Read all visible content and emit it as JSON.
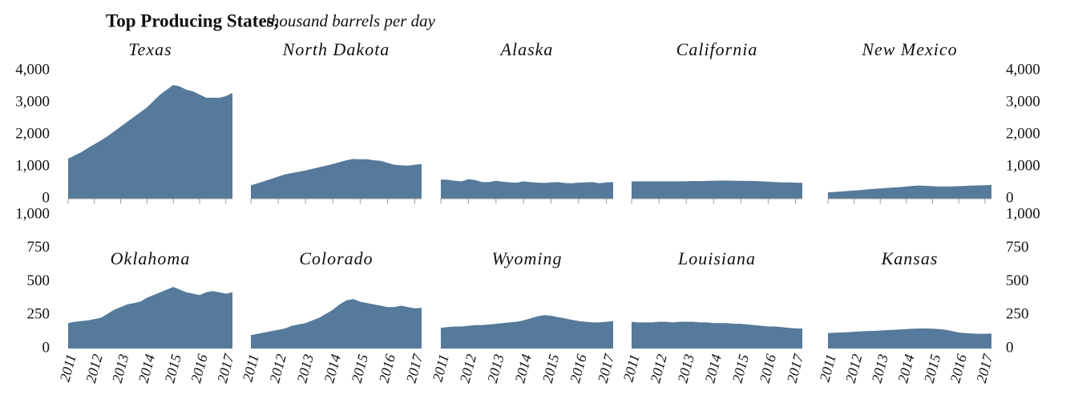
{
  "title": "Top Producing States,",
  "subtitle": "thousand barrels per day",
  "chart_data": [
    {
      "type": "area",
      "title": "Texas",
      "color": "#557a9b",
      "xlim": [
        2011,
        2017.25
      ],
      "ylim": [
        0,
        4000
      ],
      "yticks": [
        0,
        {
          "value": 1000,
          "label": "1,000"
        },
        {
          "value": 2000,
          "label": "2,000"
        },
        {
          "value": 3000,
          "label": "3,000"
        },
        {
          "value": 4000,
          "label": "4,000"
        }
      ],
      "xticks": [
        2011,
        2012,
        2013,
        2014,
        2015,
        2016,
        2017
      ],
      "x": [
        2011,
        2011.25,
        2011.5,
        2011.75,
        2012,
        2012.25,
        2012.5,
        2012.75,
        2013,
        2013.25,
        2013.5,
        2013.75,
        2014,
        2014.25,
        2014.5,
        2014.75,
        2015,
        2015.25,
        2015.5,
        2015.75,
        2016,
        2016.25,
        2016.5,
        2016.75,
        2017,
        2017.25
      ],
      "values": [
        1250,
        1350,
        1450,
        1580,
        1700,
        1820,
        1950,
        2100,
        2250,
        2400,
        2550,
        2700,
        2850,
        3050,
        3250,
        3400,
        3550,
        3500,
        3400,
        3350,
        3250,
        3150,
        3150,
        3150,
        3200,
        3300
      ]
    },
    {
      "type": "area",
      "title": "North Dakota",
      "color": "#557a9b",
      "xlim": [
        2011,
        2017.25
      ],
      "ylim": [
        0,
        4000
      ],
      "xticks": [
        2011,
        2012,
        2013,
        2014,
        2015,
        2016,
        2017
      ],
      "x": [
        2011,
        2011.25,
        2011.5,
        2011.75,
        2012,
        2012.25,
        2012.5,
        2012.75,
        2013,
        2013.25,
        2013.5,
        2013.75,
        2014,
        2014.25,
        2014.5,
        2014.75,
        2015,
        2015.25,
        2015.5,
        2015.75,
        2016,
        2016.25,
        2016.5,
        2016.75,
        2017,
        2017.25
      ],
      "values": [
        420,
        480,
        550,
        620,
        690,
        760,
        800,
        840,
        880,
        930,
        980,
        1030,
        1080,
        1140,
        1200,
        1240,
        1230,
        1230,
        1200,
        1180,
        1120,
        1060,
        1040,
        1030,
        1060,
        1080
      ]
    },
    {
      "type": "area",
      "title": "Alaska",
      "color": "#557a9b",
      "xlim": [
        2011,
        2017.25
      ],
      "ylim": [
        0,
        4000
      ],
      "xticks": [
        2011,
        2012,
        2013,
        2014,
        2015,
        2016,
        2017
      ],
      "x": [
        2011,
        2011.25,
        2011.5,
        2011.75,
        2012,
        2012.25,
        2012.5,
        2012.75,
        2013,
        2013.25,
        2013.5,
        2013.75,
        2014,
        2014.25,
        2014.5,
        2014.75,
        2015,
        2015.25,
        2015.5,
        2015.75,
        2016,
        2016.25,
        2016.5,
        2016.75,
        2017,
        2017.25
      ],
      "values": [
        600,
        590,
        560,
        540,
        610,
        580,
        520,
        520,
        560,
        530,
        510,
        500,
        540,
        520,
        500,
        490,
        510,
        520,
        490,
        480,
        500,
        510,
        520,
        480,
        510,
        520
      ]
    },
    {
      "type": "area",
      "title": "California",
      "color": "#557a9b",
      "xlim": [
        2011,
        2017.25
      ],
      "ylim": [
        0,
        4000
      ],
      "xticks": [
        2011,
        2012,
        2013,
        2014,
        2015,
        2016,
        2017
      ],
      "x": [
        2011,
        2011.25,
        2011.5,
        2011.75,
        2012,
        2012.25,
        2012.5,
        2012.75,
        2013,
        2013.25,
        2013.5,
        2013.75,
        2014,
        2014.25,
        2014.5,
        2014.75,
        2015,
        2015.25,
        2015.5,
        2015.75,
        2016,
        2016.25,
        2016.5,
        2016.75,
        2017,
        2017.25
      ],
      "values": [
        540,
        540,
        540,
        540,
        540,
        540,
        540,
        540,
        545,
        550,
        550,
        555,
        560,
        565,
        565,
        560,
        555,
        555,
        550,
        540,
        530,
        520,
        510,
        510,
        500,
        495
      ]
    },
    {
      "type": "area",
      "title": "New Mexico",
      "color": "#557a9b",
      "xlim": [
        2011,
        2017.25
      ],
      "ylim": [
        0,
        4000
      ],
      "yticks": [
        0,
        {
          "value": 1000,
          "label": "1,000"
        },
        {
          "value": 2000,
          "label": "2,000"
        },
        {
          "value": 3000,
          "label": "3,000"
        },
        {
          "value": 4000,
          "label": "4,000"
        }
      ],
      "xticks": [
        2011,
        2012,
        2013,
        2014,
        2015,
        2016,
        2017
      ],
      "x": [
        2011,
        2011.25,
        2011.5,
        2011.75,
        2012,
        2012.25,
        2012.5,
        2012.75,
        2013,
        2013.25,
        2013.5,
        2013.75,
        2014,
        2014.25,
        2014.5,
        2014.75,
        2015,
        2015.25,
        2015.5,
        2015.75,
        2016,
        2016.25,
        2016.5,
        2016.75,
        2017,
        2017.25
      ],
      "values": [
        200,
        210,
        225,
        240,
        255,
        270,
        290,
        305,
        320,
        335,
        350,
        360,
        380,
        400,
        410,
        400,
        390,
        380,
        380,
        385,
        390,
        400,
        410,
        415,
        420,
        430
      ]
    },
    {
      "type": "area",
      "title": "Oklahoma",
      "color": "#557a9b",
      "xlim": [
        2011,
        2017.25
      ],
      "ylim": [
        0,
        1000
      ],
      "yticks": [
        0,
        250,
        500,
        750,
        {
          "value": 1000,
          "label": "1,000"
        }
      ],
      "xticks": [
        2011,
        2012,
        2013,
        2014,
        2015,
        2016,
        2017
      ],
      "x": [
        2011,
        2011.25,
        2011.5,
        2011.75,
        2012,
        2012.25,
        2012.5,
        2012.75,
        2013,
        2013.25,
        2013.5,
        2013.75,
        2014,
        2014.25,
        2014.5,
        2014.75,
        2015,
        2015.25,
        2015.5,
        2015.75,
        2016,
        2016.25,
        2016.5,
        2016.75,
        2017,
        2017.25
      ],
      "values": [
        190,
        200,
        205,
        210,
        220,
        230,
        260,
        290,
        310,
        330,
        340,
        350,
        380,
        400,
        420,
        440,
        460,
        440,
        420,
        410,
        400,
        420,
        430,
        420,
        410,
        420
      ]
    },
    {
      "type": "area",
      "title": "Colorado",
      "color": "#557a9b",
      "xlim": [
        2011,
        2017.25
      ],
      "ylim": [
        0,
        1000
      ],
      "xticks": [
        2011,
        2012,
        2013,
        2014,
        2015,
        2016,
        2017
      ],
      "x": [
        2011,
        2011.25,
        2011.5,
        2011.75,
        2012,
        2012.25,
        2012.5,
        2012.75,
        2013,
        2013.25,
        2013.5,
        2013.75,
        2014,
        2014.25,
        2014.5,
        2014.75,
        2015,
        2015.25,
        2015.5,
        2015.75,
        2016,
        2016.25,
        2016.5,
        2016.75,
        2017,
        2017.25
      ],
      "values": [
        100,
        110,
        120,
        130,
        140,
        150,
        170,
        180,
        190,
        210,
        230,
        260,
        290,
        330,
        360,
        370,
        350,
        340,
        330,
        320,
        310,
        310,
        320,
        310,
        300,
        305
      ]
    },
    {
      "type": "area",
      "title": "Wyoming",
      "color": "#557a9b",
      "xlim": [
        2011,
        2017.25
      ],
      "ylim": [
        0,
        1000
      ],
      "xticks": [
        2011,
        2012,
        2013,
        2014,
        2015,
        2016,
        2017
      ],
      "x": [
        2011,
        2011.25,
        2011.5,
        2011.75,
        2012,
        2012.25,
        2012.5,
        2012.75,
        2013,
        2013.25,
        2013.5,
        2013.75,
        2014,
        2014.25,
        2014.5,
        2014.75,
        2015,
        2015.25,
        2015.5,
        2015.75,
        2016,
        2016.25,
        2016.5,
        2016.75,
        2017,
        2017.25
      ],
      "values": [
        155,
        160,
        165,
        165,
        170,
        175,
        175,
        180,
        185,
        190,
        195,
        200,
        210,
        225,
        240,
        250,
        245,
        235,
        225,
        215,
        205,
        200,
        195,
        195,
        200,
        205
      ]
    },
    {
      "type": "area",
      "title": "Louisiana",
      "color": "#557a9b",
      "xlim": [
        2011,
        2017.25
      ],
      "ylim": [
        0,
        1000
      ],
      "xticks": [
        2011,
        2012,
        2013,
        2014,
        2015,
        2016,
        2017
      ],
      "x": [
        2011,
        2011.25,
        2011.5,
        2011.75,
        2012,
        2012.25,
        2012.5,
        2012.75,
        2013,
        2013.25,
        2013.5,
        2013.75,
        2014,
        2014.25,
        2014.5,
        2014.75,
        2015,
        2015.25,
        2015.5,
        2015.75,
        2016,
        2016.25,
        2016.5,
        2016.75,
        2017,
        2017.25
      ],
      "values": [
        200,
        195,
        195,
        195,
        200,
        200,
        195,
        200,
        200,
        200,
        195,
        195,
        190,
        190,
        190,
        185,
        185,
        180,
        175,
        170,
        165,
        165,
        160,
        155,
        150,
        150
      ]
    },
    {
      "type": "area",
      "title": "Kansas",
      "color": "#557a9b",
      "xlim": [
        2011,
        2017.25
      ],
      "ylim": [
        0,
        1000
      ],
      "yticks": [
        0,
        250,
        500,
        750,
        {
          "value": 1000,
          "label": "1,000"
        }
      ],
      "xticks": [
        2011,
        2012,
        2013,
        2014,
        2015,
        2016,
        2017
      ],
      "x": [
        2011,
        2011.25,
        2011.5,
        2011.75,
        2012,
        2012.25,
        2012.5,
        2012.75,
        2013,
        2013.25,
        2013.5,
        2013.75,
        2014,
        2014.25,
        2014.5,
        2014.75,
        2015,
        2015.25,
        2015.5,
        2015.75,
        2016,
        2016.25,
        2016.5,
        2016.75,
        2017,
        2017.25
      ],
      "values": [
        115,
        118,
        120,
        122,
        125,
        128,
        130,
        132,
        135,
        138,
        140,
        142,
        145,
        148,
        150,
        150,
        148,
        145,
        140,
        130,
        120,
        115,
        112,
        110,
        110,
        112
      ]
    }
  ]
}
